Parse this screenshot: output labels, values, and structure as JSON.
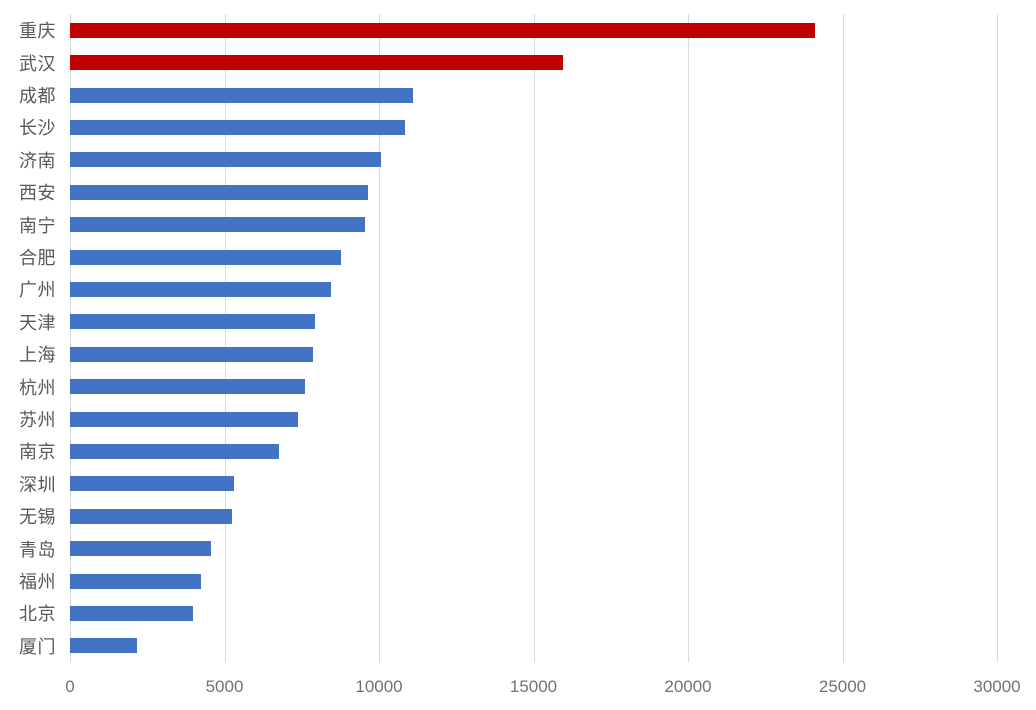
{
  "chart_data": {
    "type": "bar",
    "orientation": "horizontal",
    "title": "",
    "xlabel": "",
    "ylabel": "",
    "categories": [
      "重庆",
      "武汉",
      "成都",
      "长沙",
      "济南",
      "西安",
      "南宁",
      "合肥",
      "广州",
      "天津",
      "上海",
      "杭州",
      "苏州",
      "南京",
      "深圳",
      "无锡",
      "青岛",
      "福州",
      "北京",
      "厦门"
    ],
    "values": [
      24100,
      15950,
      11100,
      10850,
      10050,
      9650,
      9550,
      8760,
      8440,
      7920,
      7870,
      7600,
      7370,
      6750,
      5300,
      5230,
      4560,
      4240,
      3980,
      2160
    ],
    "bar_colors": [
      "#C00000",
      "#C00000",
      "#4472C4",
      "#4472C4",
      "#4472C4",
      "#4472C4",
      "#4472C4",
      "#4472C4",
      "#4472C4",
      "#4472C4",
      "#4472C4",
      "#4472C4",
      "#4472C4",
      "#4472C4",
      "#4472C4",
      "#4472C4",
      "#4472C4",
      "#4472C4",
      "#4472C4",
      "#4472C4"
    ],
    "highlight_color": "#C00000",
    "default_color": "#4472C4",
    "xlim": [
      0,
      30000
    ],
    "x_ticks": [
      0,
      5000,
      10000,
      15000,
      20000,
      25000,
      30000
    ],
    "x_tick_labels": [
      "0",
      "5000",
      "10000",
      "15000",
      "20000",
      "25000",
      "30000"
    ],
    "grid": true,
    "legend": false,
    "gridline_color": "#D9D9D9",
    "category_label_color": "#595959",
    "tick_label_color": "#737373",
    "background_color": "#FFFFFF"
  }
}
